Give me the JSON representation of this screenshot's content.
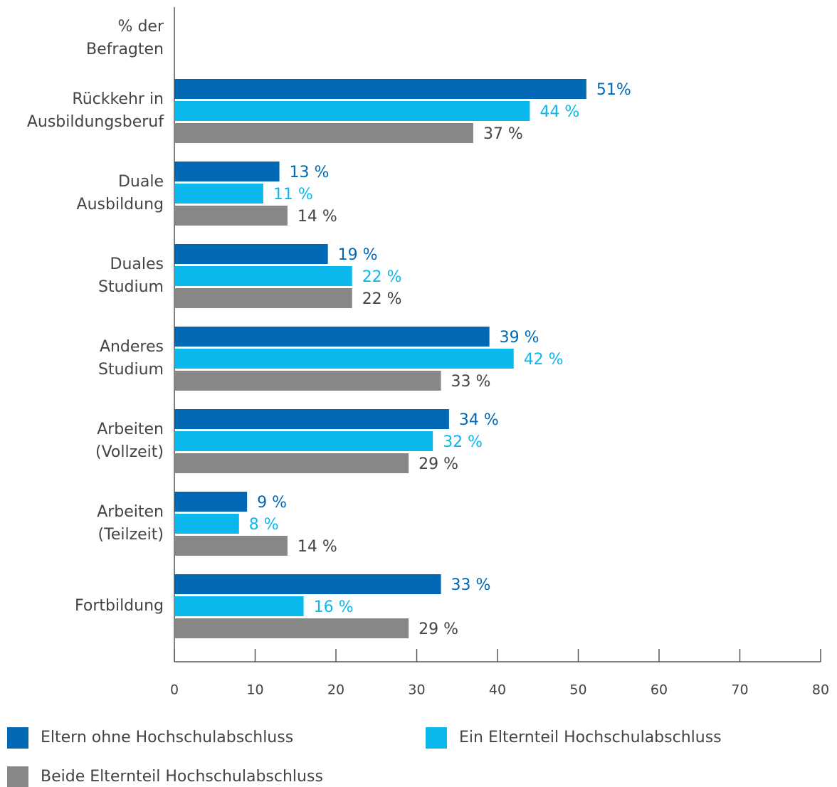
{
  "chart_data": {
    "type": "bar",
    "orientation": "horizontal",
    "ylabel": [
      "% der",
      "Befragten"
    ],
    "categories": [
      [
        "Rückkehr in",
        "Ausbildungsberuf"
      ],
      [
        "Duale",
        "Ausbildung"
      ],
      [
        "Duales",
        "Studium"
      ],
      [
        "Anderes",
        "Studium"
      ],
      [
        "Arbeiten",
        "(Vollzeit)"
      ],
      [
        "Arbeiten",
        "(Teilzeit)"
      ],
      [
        "Fortbildung"
      ]
    ],
    "series": [
      {
        "name": "Eltern ohne Hochschulabschluss",
        "color": "#0068b4",
        "label_color": "#0068b4",
        "values": [
          51,
          13,
          19,
          39,
          34,
          9,
          33
        ],
        "value_labels": [
          "51%",
          "13 %",
          "19 %",
          "39 %",
          "34 %",
          "9 %",
          "33 %"
        ]
      },
      {
        "name": "Ein Elternteil Hochschulabschluss",
        "color": "#0bb8ee",
        "label_color": "#0bb8ee",
        "values": [
          44,
          11,
          22,
          42,
          32,
          8,
          16
        ],
        "value_labels": [
          "44 %",
          "11 %",
          "22 %",
          "42 %",
          "32 %",
          "8 %",
          "16 %"
        ]
      },
      {
        "name": "Beide Elternteil Hochschulabschluss",
        "color": "#878787",
        "label_color": "#444444",
        "values": [
          37,
          14,
          22,
          33,
          29,
          14,
          29
        ],
        "value_labels": [
          "37 %",
          "14 %",
          "22 %",
          "33 %",
          "29 %",
          "14 %",
          "29 %"
        ]
      }
    ],
    "xlim": [
      0,
      80
    ],
    "xticks": [
      0,
      10,
      20,
      30,
      40,
      50,
      60,
      70,
      80
    ]
  }
}
